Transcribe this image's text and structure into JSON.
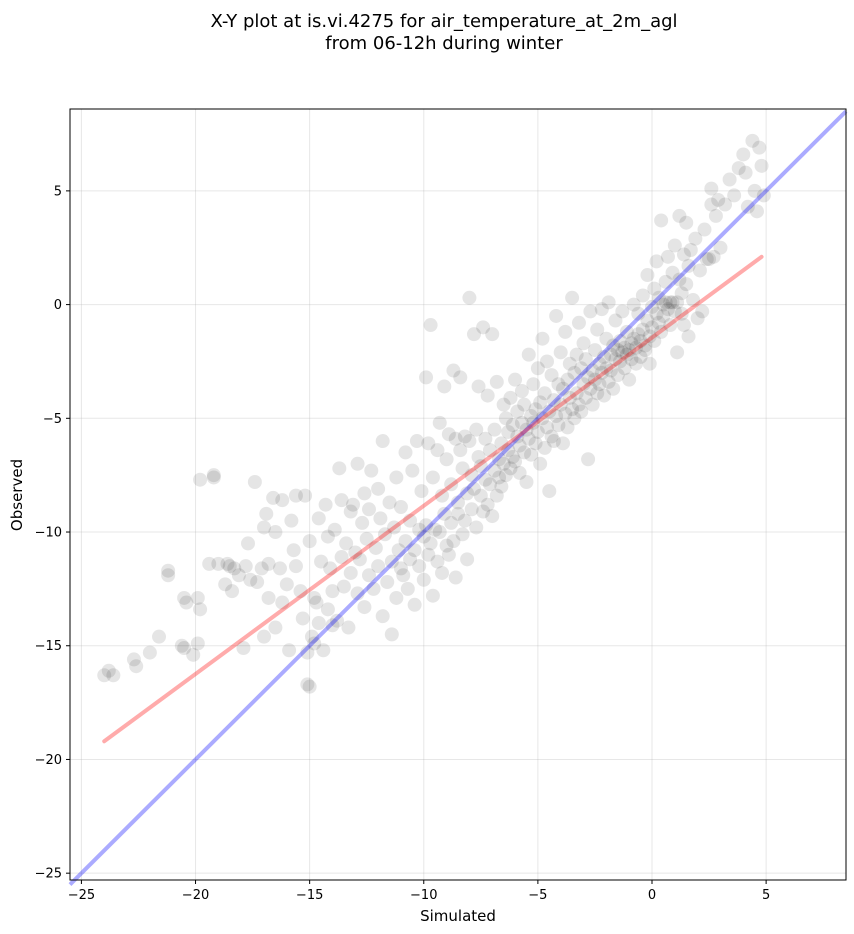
{
  "chart_data": {
    "type": "scatter",
    "title_line1": "X-Y plot at is.vi.4275 for air_temperature_at_2m_agl",
    "title_line2": "from 06-12h during winter",
    "xlabel": "Simulated",
    "ylabel": "Observed",
    "xlim": [
      -25.5,
      8.5
    ],
    "ylim": [
      -25.3,
      8.6
    ],
    "x_ticks": [
      -25,
      -20,
      -15,
      -10,
      -5,
      0,
      5
    ],
    "x_tick_labels": [
      "−25",
      "−20",
      "−15",
      "−10",
      "−5",
      "0",
      "5"
    ],
    "y_ticks": [
      -25,
      -20,
      -15,
      -10,
      -5,
      0,
      5
    ],
    "y_tick_labels": [
      "−25",
      "−20",
      "−15",
      "−10",
      "−5",
      "0",
      "5"
    ],
    "grid": true,
    "point_color": "#000000",
    "point_alpha": 0.1,
    "identity_line": {
      "x": [
        -25.5,
        8.5
      ],
      "y": [
        -25.5,
        8.5
      ],
      "color": "#0000ff",
      "alpha": 0.33
    },
    "regression_line": {
      "x": [
        -24.0,
        4.8
      ],
      "y": [
        -19.2,
        2.1
      ],
      "color": "#ff0000",
      "alpha": 0.33
    },
    "points": [
      [
        -24.0,
        -16.3
      ],
      [
        -23.8,
        -16.1
      ],
      [
        -23.6,
        -16.3
      ],
      [
        -22.7,
        -15.6
      ],
      [
        -22.6,
        -15.9
      ],
      [
        -22.0,
        -15.3
      ],
      [
        -21.6,
        -14.6
      ],
      [
        -21.2,
        -11.7
      ],
      [
        -21.2,
        -11.9
      ],
      [
        -20.6,
        -15.0
      ],
      [
        -20.5,
        -15.1
      ],
      [
        -20.5,
        -12.9
      ],
      [
        -20.4,
        -13.1
      ],
      [
        -20.1,
        -15.4
      ],
      [
        -19.9,
        -14.9
      ],
      [
        -19.9,
        -12.9
      ],
      [
        -19.8,
        -13.4
      ],
      [
        -19.8,
        -7.7
      ],
      [
        -19.4,
        -11.4
      ],
      [
        -19.2,
        -7.5
      ],
      [
        -19.2,
        -7.6
      ],
      [
        -19.0,
        -11.4
      ],
      [
        -18.7,
        -12.3
      ],
      [
        -18.6,
        -11.4
      ],
      [
        -18.5,
        -11.5
      ],
      [
        -18.4,
        -12.6
      ],
      [
        -18.3,
        -11.6
      ],
      [
        -18.1,
        -11.9
      ],
      [
        -17.9,
        -15.1
      ],
      [
        -17.8,
        -11.5
      ],
      [
        -17.7,
        -10.5
      ],
      [
        -17.6,
        -12.1
      ],
      [
        -17.4,
        -7.8
      ],
      [
        -17.3,
        -12.2
      ],
      [
        -17.1,
        -11.6
      ],
      [
        -17.0,
        -14.6
      ],
      [
        -17.0,
        -9.8
      ],
      [
        -16.9,
        -9.2
      ],
      [
        -16.8,
        -11.4
      ],
      [
        -16.8,
        -12.9
      ],
      [
        -16.6,
        -8.5
      ],
      [
        -16.5,
        -10.0
      ],
      [
        -16.5,
        -14.2
      ],
      [
        -16.3,
        -11.6
      ],
      [
        -16.2,
        -8.6
      ],
      [
        -16.2,
        -13.1
      ],
      [
        -16.0,
        -12.3
      ],
      [
        -15.9,
        -15.2
      ],
      [
        -15.8,
        -9.5
      ],
      [
        -15.7,
        -10.8
      ],
      [
        -15.6,
        -11.5
      ],
      [
        -15.6,
        -8.4
      ],
      [
        -15.4,
        -12.6
      ],
      [
        -15.3,
        -13.8
      ],
      [
        -15.2,
        -8.4
      ],
      [
        -15.1,
        -15.3
      ],
      [
        -15.1,
        -16.7
      ],
      [
        -15.0,
        -16.8
      ],
      [
        -15.0,
        -10.4
      ],
      [
        -14.9,
        -14.6
      ],
      [
        -14.8,
        -14.9
      ],
      [
        -14.8,
        -12.9
      ],
      [
        -14.7,
        -13.1
      ],
      [
        -14.6,
        -14.0
      ],
      [
        -14.6,
        -9.4
      ],
      [
        -14.5,
        -11.3
      ],
      [
        -14.4,
        -15.2
      ],
      [
        -14.3,
        -8.8
      ],
      [
        -14.2,
        -13.4
      ],
      [
        -14.2,
        -10.2
      ],
      [
        -14.1,
        -11.6
      ],
      [
        -14.0,
        -14.1
      ],
      [
        -14.0,
        -12.6
      ],
      [
        -13.9,
        -9.9
      ],
      [
        -13.8,
        -13.9
      ],
      [
        -13.7,
        -7.2
      ],
      [
        -13.6,
        -11.1
      ],
      [
        -13.6,
        -8.6
      ],
      [
        -13.5,
        -12.4
      ],
      [
        -13.4,
        -10.5
      ],
      [
        -13.3,
        -14.2
      ],
      [
        -13.2,
        -11.8
      ],
      [
        -13.2,
        -9.1
      ],
      [
        -13.1,
        -8.8
      ],
      [
        -13.0,
        -10.9
      ],
      [
        -12.9,
        -7.0
      ],
      [
        -12.9,
        -12.7
      ],
      [
        -12.8,
        -11.2
      ],
      [
        -12.7,
        -9.6
      ],
      [
        -12.6,
        -13.3
      ],
      [
        -12.6,
        -8.3
      ],
      [
        -12.5,
        -10.3
      ],
      [
        -12.4,
        -11.9
      ],
      [
        -12.4,
        -9.0
      ],
      [
        -12.3,
        -7.3
      ],
      [
        -12.2,
        -12.5
      ],
      [
        -12.1,
        -10.7
      ],
      [
        -12.0,
        -8.1
      ],
      [
        -12.0,
        -11.5
      ],
      [
        -11.9,
        -9.4
      ],
      [
        -11.8,
        -6.0
      ],
      [
        -11.8,
        -13.7
      ],
      [
        -11.7,
        -10.1
      ],
      [
        -11.6,
        -12.2
      ],
      [
        -11.5,
        -8.7
      ],
      [
        -11.4,
        -11.3
      ],
      [
        -11.4,
        -14.5
      ],
      [
        -11.3,
        -9.8
      ],
      [
        -11.2,
        -7.6
      ],
      [
        -11.2,
        -12.9
      ],
      [
        -11.1,
        -10.8
      ],
      [
        -11.0,
        -11.6
      ],
      [
        -11.0,
        -8.9
      ],
      [
        -10.9,
        -11.9
      ],
      [
        -10.8,
        -6.5
      ],
      [
        -10.8,
        -10.4
      ],
      [
        -10.7,
        -12.5
      ],
      [
        -10.6,
        -9.5
      ],
      [
        -10.6,
        -11.2
      ],
      [
        -10.5,
        -7.3
      ],
      [
        -10.4,
        -10.8
      ],
      [
        -10.4,
        -13.2
      ],
      [
        -10.3,
        -6.0
      ],
      [
        -10.2,
        -9.9
      ],
      [
        -10.2,
        -11.5
      ],
      [
        -10.1,
        -8.2
      ],
      [
        -10.0,
        -10.2
      ],
      [
        -10.0,
        -12.1
      ],
      [
        -9.9,
        -3.2
      ],
      [
        -9.9,
        -9.7
      ],
      [
        -9.8,
        -6.1
      ],
      [
        -9.8,
        -11.0
      ],
      [
        -9.7,
        -0.9
      ],
      [
        -9.7,
        -10.5
      ],
      [
        -9.6,
        -7.6
      ],
      [
        -9.6,
        -12.8
      ],
      [
        -9.5,
        -9.9
      ],
      [
        -9.4,
        -6.4
      ],
      [
        -9.4,
        -11.3
      ],
      [
        -9.3,
        -5.2
      ],
      [
        -9.3,
        -10.0
      ],
      [
        -9.2,
        -8.4
      ],
      [
        -9.2,
        -11.8
      ],
      [
        -9.1,
        -3.6
      ],
      [
        -9.1,
        -9.2
      ],
      [
        -9.0,
        -6.8
      ],
      [
        -9.0,
        -10.6
      ],
      [
        -8.9,
        -5.7
      ],
      [
        -8.9,
        -11.0
      ],
      [
        -8.8,
        -7.9
      ],
      [
        -8.8,
        -9.6
      ],
      [
        -8.7,
        -2.9
      ],
      [
        -8.7,
        -10.4
      ],
      [
        -8.6,
        -5.9
      ],
      [
        -8.6,
        -12.0
      ],
      [
        -8.5,
        -8.7
      ],
      [
        -8.5,
        -9.2
      ],
      [
        -8.4,
        -6.4
      ],
      [
        -8.4,
        -3.2
      ],
      [
        -8.3,
        -10.1
      ],
      [
        -8.3,
        -7.2
      ],
      [
        -8.2,
        -5.8
      ],
      [
        -8.2,
        -9.5
      ],
      [
        -8.1,
        -8.3
      ],
      [
        -8.1,
        -11.2
      ],
      [
        -8.0,
        -6.0
      ],
      [
        -8.0,
        0.3
      ],
      [
        -7.9,
        -9.0
      ],
      [
        -7.9,
        -7.5
      ],
      [
        -7.8,
        -1.3
      ],
      [
        -7.8,
        -8.1
      ],
      [
        -7.7,
        -5.5
      ],
      [
        -7.7,
        -9.8
      ],
      [
        -7.6,
        -6.7
      ],
      [
        -7.6,
        -3.6
      ],
      [
        -7.5,
        -8.4
      ],
      [
        -7.5,
        -7.1
      ],
      [
        -7.4,
        -1.0
      ],
      [
        -7.4,
        -9.1
      ],
      [
        -7.3,
        -5.9
      ],
      [
        -7.3,
        -7.7
      ],
      [
        -7.2,
        -8.8
      ],
      [
        -7.2,
        -4.0
      ],
      [
        -7.1,
        -6.4
      ],
      [
        -7.1,
        -7.9
      ],
      [
        -7.0,
        -1.3
      ],
      [
        -7.0,
        -9.3
      ],
      [
        -6.9,
        -5.5
      ],
      [
        -6.9,
        -7.3
      ],
      [
        -6.8,
        -8.4
      ],
      [
        -6.8,
        -3.4
      ],
      [
        -6.7,
        -6.8
      ],
      [
        -6.7,
        -7.6
      ],
      [
        -6.6,
        -6.1
      ],
      [
        -6.6,
        -8.0
      ],
      [
        -6.5,
        -4.4
      ],
      [
        -6.5,
        -7.0
      ],
      [
        -6.4,
        -5.0
      ],
      [
        -6.4,
        -7.5
      ],
      [
        -6.3,
        -5.6
      ],
      [
        -6.3,
        -6.4
      ],
      [
        -6.2,
        -4.1
      ],
      [
        -6.2,
        -7.2
      ],
      [
        -6.1,
        -5.3
      ],
      [
        -6.1,
        -6.7
      ],
      [
        -6.0,
        -3.3
      ],
      [
        -6.0,
        -6.9
      ],
      [
        -5.9,
        -5.8
      ],
      [
        -5.9,
        -4.7
      ],
      [
        -5.8,
        -6.2
      ],
      [
        -5.8,
        -7.4
      ],
      [
        -5.7,
        -3.8
      ],
      [
        -5.7,
        -5.2
      ],
      [
        -5.6,
        -6.5
      ],
      [
        -5.6,
        -4.4
      ],
      [
        -5.5,
        -5.5
      ],
      [
        -5.5,
        -7.8
      ],
      [
        -5.4,
        -2.2
      ],
      [
        -5.4,
        -5.9
      ],
      [
        -5.3,
        -4.9
      ],
      [
        -5.3,
        -6.6
      ],
      [
        -5.2,
        -5.2
      ],
      [
        -5.2,
        -3.5
      ],
      [
        -5.1,
        -6.1
      ],
      [
        -5.1,
        -4.6
      ],
      [
        -5.0,
        -2.8
      ],
      [
        -5.0,
        -5.6
      ],
      [
        -4.9,
        -7.0
      ],
      [
        -4.9,
        -4.3
      ],
      [
        -4.8,
        -5.0
      ],
      [
        -4.8,
        -1.5
      ],
      [
        -4.7,
        -6.3
      ],
      [
        -4.7,
        -3.9
      ],
      [
        -4.6,
        -5.4
      ],
      [
        -4.6,
        -2.5
      ],
      [
        -4.5,
        -4.7
      ],
      [
        -4.5,
        -8.2
      ],
      [
        -4.4,
        -5.8
      ],
      [
        -4.4,
        -3.1
      ],
      [
        -4.3,
        -4.2
      ],
      [
        -4.3,
        -6.0
      ],
      [
        -4.2,
        -0.5
      ],
      [
        -4.2,
        -4.9
      ],
      [
        -4.1,
        -3.5
      ],
      [
        -4.1,
        -5.3
      ],
      [
        -4.0,
        -2.1
      ],
      [
        -4.0,
        -4.4
      ],
      [
        -3.9,
        -6.1
      ],
      [
        -3.9,
        -3.7
      ],
      [
        -3.8,
        -4.8
      ],
      [
        -3.8,
        -1.2
      ],
      [
        -3.7,
        -3.3
      ],
      [
        -3.7,
        -5.4
      ],
      [
        -3.6,
        -2.6
      ],
      [
        -3.6,
        -4.1
      ],
      [
        -3.5,
        -4.6
      ],
      [
        -3.5,
        0.3
      ],
      [
        -3.4,
        -3.0
      ],
      [
        -3.4,
        -5.0
      ],
      [
        -3.3,
        -2.2
      ],
      [
        -3.3,
        -3.9
      ],
      [
        -3.2,
        -4.4
      ],
      [
        -3.2,
        -0.8
      ],
      [
        -3.1,
        -2.8
      ],
      [
        -3.1,
        -4.7
      ],
      [
        -3.0,
        -3.5
      ],
      [
        -3.0,
        -1.7
      ],
      [
        -2.9,
        -4.1
      ],
      [
        -2.9,
        -2.4
      ],
      [
        -2.8,
        -3.2
      ],
      [
        -2.8,
        -6.8
      ],
      [
        -2.7,
        -0.3
      ],
      [
        -2.7,
        -3.7
      ],
      [
        -2.6,
        -2.9
      ],
      [
        -2.6,
        -4.4
      ],
      [
        -2.5,
        -2.0
      ],
      [
        -2.5,
        -3.3
      ],
      [
        -2.4,
        -3.9
      ],
      [
        -2.4,
        -1.1
      ],
      [
        -2.3,
        -2.6
      ],
      [
        -2.3,
        -3.5
      ],
      [
        -2.2,
        -0.2
      ],
      [
        -2.2,
        -3.0
      ],
      [
        -2.1,
        -2.3
      ],
      [
        -2.1,
        -4.0
      ],
      [
        -2.0,
        -2.8
      ],
      [
        -2.0,
        -1.5
      ],
      [
        -1.9,
        -3.4
      ],
      [
        -1.9,
        0.1
      ],
      [
        -1.8,
        -2.2
      ],
      [
        -1.8,
        -2.9
      ],
      [
        -1.7,
        -1.8
      ],
      [
        -1.7,
        -3.7
      ],
      [
        -1.6,
        -2.4
      ],
      [
        -1.6,
        -0.7
      ],
      [
        -1.5,
        -2.0
      ],
      [
        -1.5,
        -3.1
      ],
      [
        -1.4,
        -1.6
      ],
      [
        -1.4,
        -2.5
      ],
      [
        -1.3,
        -2.1
      ],
      [
        -1.3,
        -0.3
      ],
      [
        -1.2,
        -1.9
      ],
      [
        -1.2,
        -2.8
      ],
      [
        -1.1,
        -2.2
      ],
      [
        -1.1,
        -1.2
      ],
      [
        -1.0,
        -2.0
      ],
      [
        -1.0,
        -3.3
      ],
      [
        -0.9,
        -1.7
      ],
      [
        -0.9,
        -2.4
      ],
      [
        -0.8,
        -1.5
      ],
      [
        -0.8,
        0.0
      ],
      [
        -0.7,
        -1.9
      ],
      [
        -0.7,
        -2.6
      ],
      [
        -0.6,
        -1.3
      ],
      [
        -0.6,
        -0.4
      ],
      [
        -0.5,
        -1.6
      ],
      [
        -0.5,
        -2.3
      ],
      [
        -0.4,
        0.4
      ],
      [
        -0.4,
        -1.1
      ],
      [
        -0.3,
        -1.8
      ],
      [
        -0.3,
        -2.0
      ],
      [
        -0.2,
        1.3
      ],
      [
        -0.2,
        -0.7
      ],
      [
        -0.1,
        -1.4
      ],
      [
        -0.1,
        -2.6
      ],
      [
        0.0,
        -0.1
      ],
      [
        0.0,
        -1.0
      ],
      [
        0.1,
        0.7
      ],
      [
        0.1,
        -1.6
      ],
      [
        0.2,
        -0.4
      ],
      [
        0.2,
        1.9
      ],
      [
        0.3,
        -0.8
      ],
      [
        0.3,
        0.3
      ],
      [
        0.4,
        -1.2
      ],
      [
        0.4,
        3.7
      ],
      [
        0.5,
        0.0
      ],
      [
        0.5,
        -0.5
      ],
      [
        0.6,
        1.0
      ],
      [
        0.6,
        0.1
      ],
      [
        0.7,
        -0.2
      ],
      [
        0.7,
        2.1
      ],
      [
        0.8,
        0.1
      ],
      [
        0.8,
        -0.9
      ],
      [
        0.9,
        1.4
      ],
      [
        0.9,
        0.1
      ],
      [
        1.0,
        -0.3
      ],
      [
        1.0,
        2.6
      ],
      [
        1.1,
        0.1
      ],
      [
        1.1,
        -2.1
      ],
      [
        1.2,
        3.9
      ],
      [
        1.2,
        1.1
      ],
      [
        1.3,
        -0.4
      ],
      [
        1.3,
        0.5
      ],
      [
        1.4,
        2.2
      ],
      [
        1.4,
        -0.9
      ],
      [
        1.5,
        3.6
      ],
      [
        1.5,
        0.9
      ],
      [
        1.6,
        -1.4
      ],
      [
        1.6,
        1.7
      ],
      [
        1.7,
        2.4
      ],
      [
        1.8,
        0.2
      ],
      [
        1.9,
        2.9
      ],
      [
        2.0,
        -0.6
      ],
      [
        2.1,
        1.5
      ],
      [
        2.2,
        -0.3
      ],
      [
        2.3,
        3.3
      ],
      [
        2.4,
        2.0
      ],
      [
        2.5,
        2.0
      ],
      [
        2.6,
        5.1
      ],
      [
        2.6,
        4.4
      ],
      [
        2.7,
        2.1
      ],
      [
        2.8,
        3.9
      ],
      [
        2.9,
        4.6
      ],
      [
        3.0,
        2.5
      ],
      [
        3.2,
        4.4
      ],
      [
        3.4,
        5.5
      ],
      [
        3.6,
        4.8
      ],
      [
        3.8,
        6.0
      ],
      [
        4.0,
        6.6
      ],
      [
        4.1,
        5.8
      ],
      [
        4.2,
        4.3
      ],
      [
        4.4,
        7.2
      ],
      [
        4.5,
        5.0
      ],
      [
        4.7,
        6.9
      ],
      [
        4.8,
        6.1
      ],
      [
        4.9,
        4.8
      ],
      [
        4.6,
        4.1
      ]
    ]
  }
}
